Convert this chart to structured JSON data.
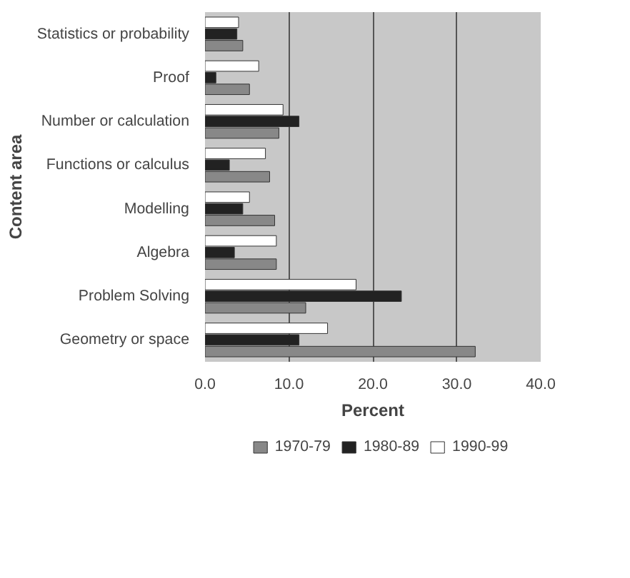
{
  "chart_data": {
    "type": "bar",
    "orientation": "horizontal",
    "xlabel": "Percent",
    "ylabel": "Content area",
    "categories": [
      "Statistics or probability",
      "Proof",
      "Number or calculation",
      "Functions or calculus",
      "Modelling",
      "Algebra",
      "Problem Solving",
      "Geometry or space"
    ],
    "series": [
      {
        "name": "1970-79",
        "color": "#888888",
        "values": [
          4.5,
          5.3,
          8.8,
          7.7,
          8.3,
          8.5,
          12.0,
          32.2
        ]
      },
      {
        "name": "1980-89",
        "color": "#222222",
        "values": [
          3.8,
          1.3,
          11.2,
          2.9,
          4.5,
          3.5,
          23.4,
          11.2
        ]
      },
      {
        "name": "1990-99",
        "color": "#ffffff",
        "values": [
          4.0,
          6.4,
          9.3,
          7.2,
          5.3,
          8.5,
          18.0,
          14.6
        ]
      }
    ],
    "xlim": [
      0,
      40
    ],
    "xticks": [
      {
        "value": 0,
        "label": "0.0"
      },
      {
        "value": 10,
        "label": "10.0"
      },
      {
        "value": 20,
        "label": "20.0"
      },
      {
        "value": 30,
        "label": "30.0"
      },
      {
        "value": 40,
        "label": "40.0"
      }
    ],
    "grid": "x",
    "legend": "bottom"
  }
}
